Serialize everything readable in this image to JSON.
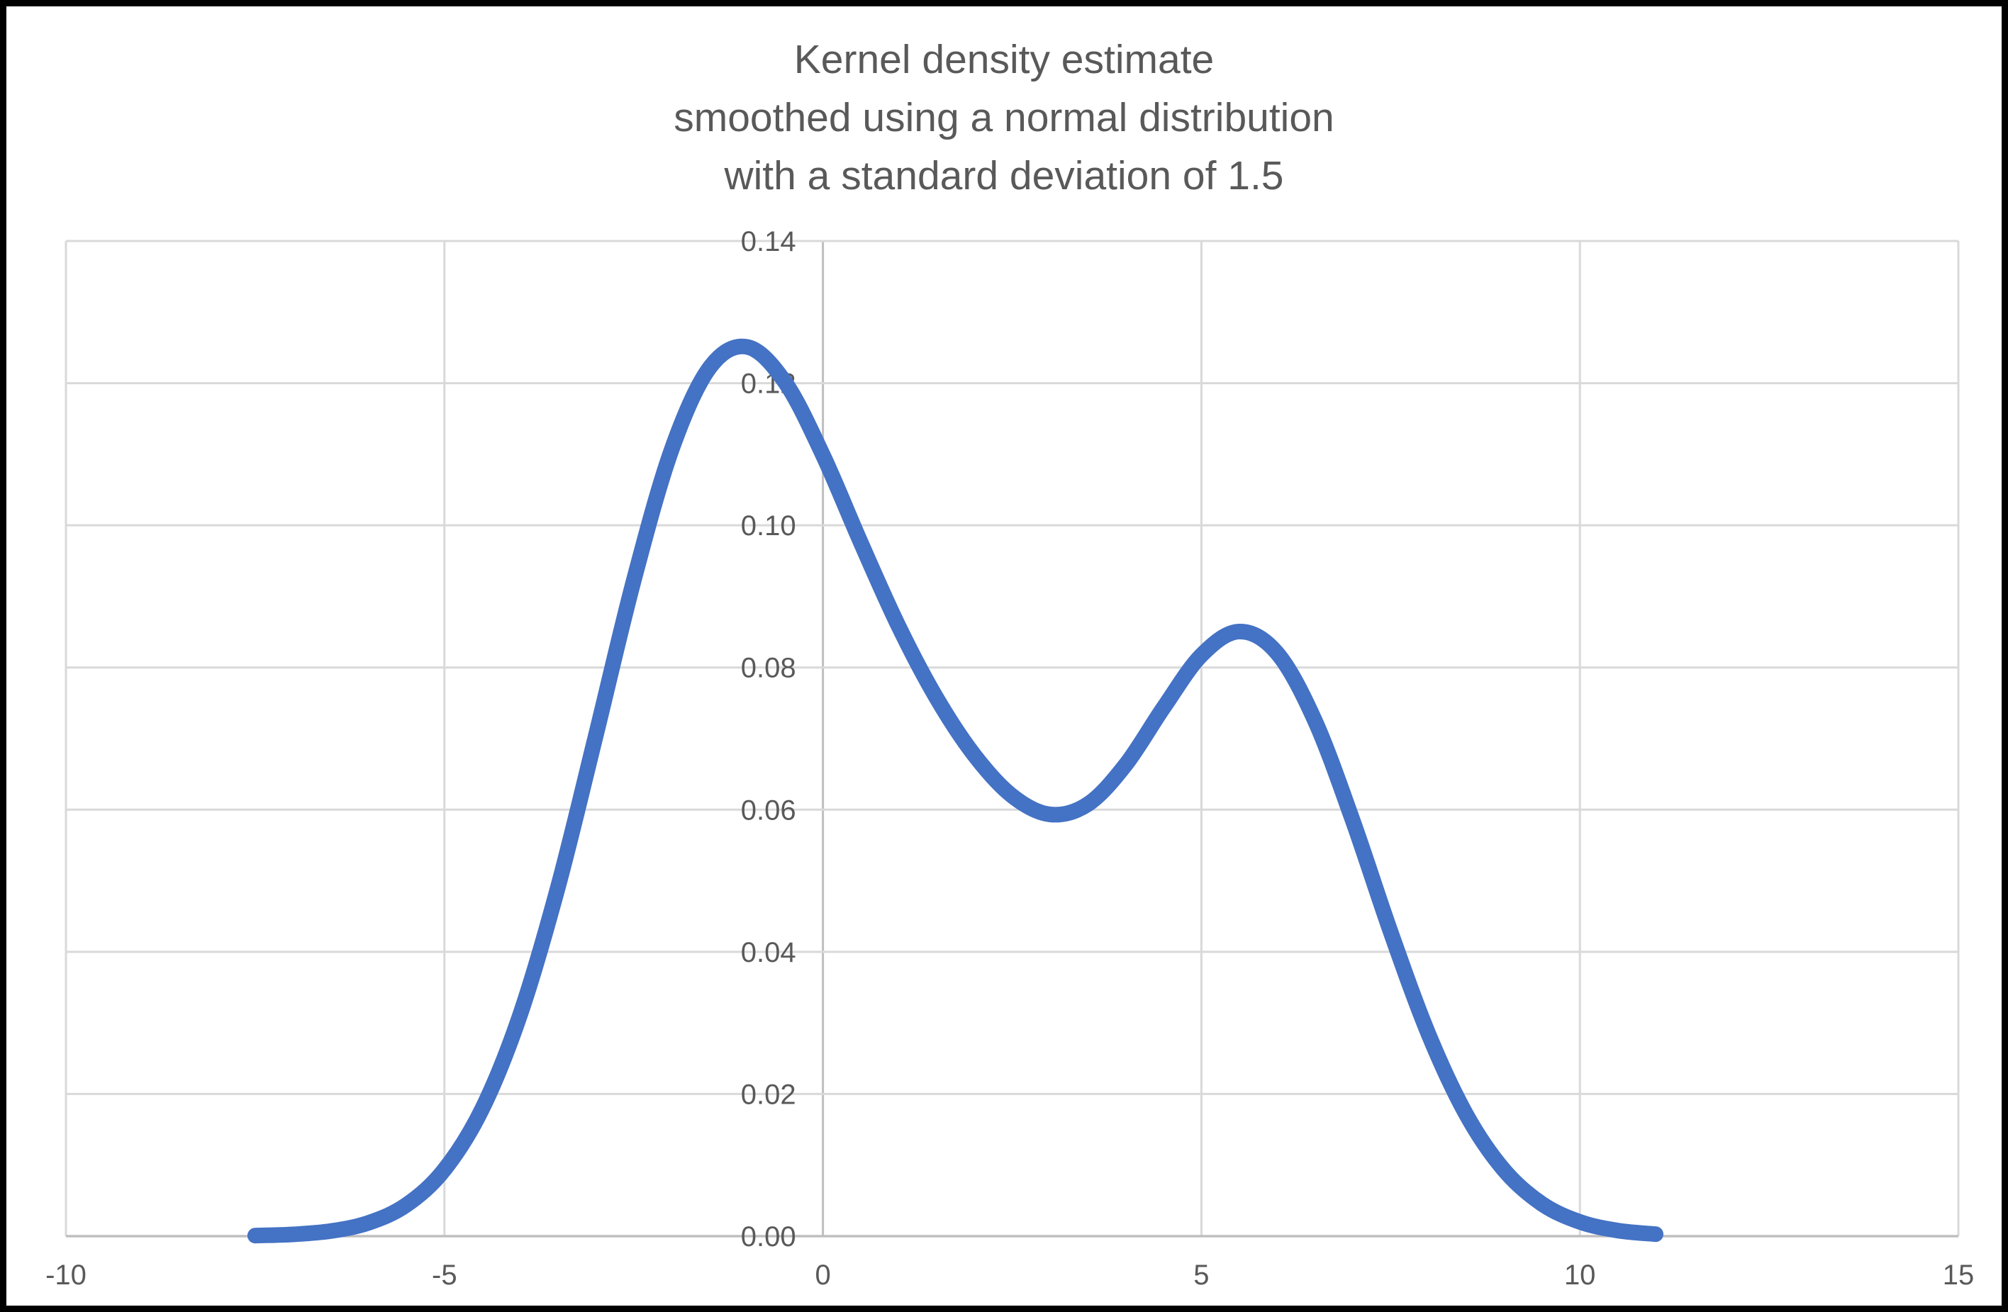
{
  "chart": {
    "colors": {
      "line": "#4472C4",
      "grid": "#D9D9D9",
      "axis": "#BFBFBF",
      "text": "#595959",
      "frame": "#000000",
      "background": "#FFFFFF"
    }
  },
  "chart_data": {
    "type": "line",
    "title": "Kernel density estimate\nsmoothed using a normal distribution\nwith a standard deviation of 1.5",
    "xlabel": "",
    "ylabel": "",
    "xlim": [
      -10,
      15
    ],
    "ylim": [
      0,
      0.14
    ],
    "grid": true,
    "legend": "none",
    "x_ticks": [
      {
        "v": -10,
        "label": "-10"
      },
      {
        "v": -5,
        "label": "-5"
      },
      {
        "v": 0,
        "label": "0"
      },
      {
        "v": 5,
        "label": "5"
      },
      {
        "v": 10,
        "label": "10"
      },
      {
        "v": 15,
        "label": "15"
      }
    ],
    "y_ticks": [
      {
        "v": 0.0,
        "label": "0.00"
      },
      {
        "v": 0.02,
        "label": "0.02"
      },
      {
        "v": 0.04,
        "label": "0.04"
      },
      {
        "v": 0.06,
        "label": "0.06"
      },
      {
        "v": 0.08,
        "label": "0.08"
      },
      {
        "v": 0.1,
        "label": "0.10"
      },
      {
        "v": 0.12,
        "label": "0.12"
      },
      {
        "v": 0.14,
        "label": "0.14"
      }
    ],
    "series": [
      {
        "name": "kernel-density-estimate",
        "x": [
          -7.5,
          -7.0,
          -6.5,
          -6.0,
          -5.5,
          -5.0,
          -4.5,
          -4.0,
          -3.5,
          -3.0,
          -2.5,
          -2.0,
          -1.5,
          -1.0,
          -0.5,
          0.0,
          0.5,
          1.0,
          1.5,
          2.0,
          2.5,
          3.0,
          3.5,
          4.0,
          4.5,
          5.0,
          5.5,
          6.0,
          6.5,
          7.0,
          7.5,
          8.0,
          8.5,
          9.0,
          9.5,
          10.0,
          10.5,
          11.0
        ],
        "y": [
          8e-05,
          0.00025,
          0.00072,
          0.00188,
          0.00441,
          0.00936,
          0.01794,
          0.03116,
          0.0491,
          0.07043,
          0.0922,
          0.1106,
          0.12213,
          0.1251,
          0.12014,
          0.10989,
          0.09758,
          0.08579,
          0.07573,
          0.06768,
          0.06194,
          0.05933,
          0.06078,
          0.06633,
          0.07435,
          0.08173,
          0.08506,
          0.08203,
          0.07252,
          0.05846,
          0.04281,
          0.02843,
          0.01708,
          0.00928,
          0.00454,
          0.002,
          0.00079,
          0.00028
        ]
      }
    ],
    "annotations": {
      "main_peak": {
        "x": -1.0,
        "y": 0.125
      },
      "valley": {
        "x": 3.1,
        "y": 0.059
      },
      "second_peak": {
        "x": 5.5,
        "y": 0.085
      }
    }
  }
}
